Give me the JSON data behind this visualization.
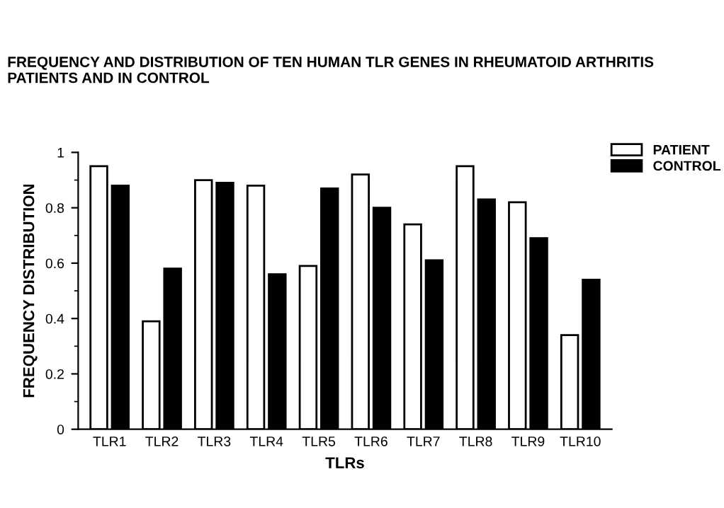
{
  "chart_data": {
    "type": "bar",
    "title": "FREQUENCY AND DISTRIBUTION OF TEN HUMAN TLR GENES IN RHEUMATOID ARTHRITIS PATIENTS AND IN CONTROL",
    "xlabel": "TLRs",
    "ylabel": "FREQUENCY DISTRIBUTION",
    "categories": [
      "TLR1",
      "TLR2",
      "TLR3",
      "TLR4",
      "TLR5",
      "TLR6",
      "TLR7",
      "TLR8",
      "TLR9",
      "TLR10"
    ],
    "series": [
      {
        "name": "PATIENT",
        "color": "#ffffff",
        "values": [
          0.95,
          0.39,
          0.9,
          0.88,
          0.59,
          0.92,
          0.74,
          0.95,
          0.82,
          0.34
        ]
      },
      {
        "name": "CONTROL",
        "color": "#000000",
        "values": [
          0.88,
          0.58,
          0.89,
          0.56,
          0.87,
          0.8,
          0.61,
          0.83,
          0.69,
          0.54
        ]
      }
    ],
    "ylim": [
      0,
      1
    ],
    "yticks": [
      0,
      0.2,
      0.4,
      0.6,
      0.8,
      1
    ],
    "grid": false,
    "legend": "top right"
  }
}
